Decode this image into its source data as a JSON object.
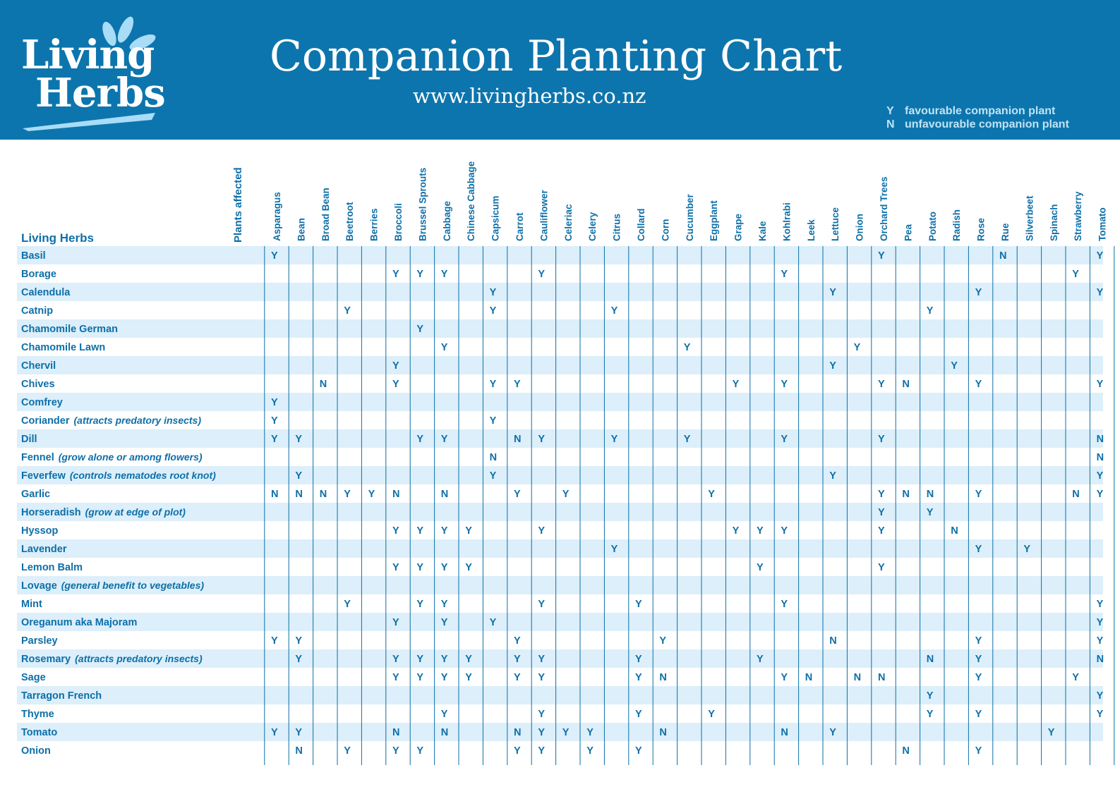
{
  "header": {
    "logo_line1": "Living",
    "logo_line2": "Herbs",
    "title": "Companion Planting Chart",
    "url": "www.livingherbs.co.nz"
  },
  "legend": {
    "y_key": "Y",
    "y_text": "favourable companion plant",
    "n_key": "N",
    "n_text": "unfavourable companion plant"
  },
  "colors": {
    "brand_blue": "#0d75ad",
    "text_blue": "#0d6fa8",
    "row_shade": "#dceffa",
    "legend_text": "#bfe3f6"
  },
  "chart_data": {
    "type": "table",
    "row_header": "Living Herbs",
    "plants_header": "Plants affected",
    "columns": [
      "Asparagus",
      "Bean",
      "Broad Bean",
      "Beetroot",
      "Berries",
      "Broccoli",
      "Brussel Sprouts",
      "Cabbage",
      "Chinese Cabbage",
      "Capsicum",
      "Carrot",
      "Cauliflower",
      "Celeriac",
      "Celery",
      "Citrus",
      "Collard",
      "Corn",
      "Cucumber",
      "Eggplant",
      "Grape",
      "Kale",
      "Kohlrabi",
      "Leek",
      "Lettuce",
      "Onion",
      "Orchard Trees",
      "Pea",
      "Potato",
      "Radish",
      "Rose",
      "Rue",
      "Silverbeet",
      "Spinach",
      "Strawberry",
      "Tomato"
    ],
    "rows": [
      {
        "name": "Basil",
        "note": "",
        "cells": {
          "Asparagus": "Y",
          "Orchard Trees": "Y",
          "Rue": "N",
          "Tomato": "Y"
        }
      },
      {
        "name": "Borage",
        "note": "",
        "cells": {
          "Broccoli": "Y",
          "Brussel Sprouts": "Y",
          "Cabbage": "Y",
          "Cauliflower": "Y",
          "Kohlrabi": "Y",
          "Strawberry": "Y"
        }
      },
      {
        "name": "Calendula",
        "note": "",
        "cells": {
          "Capsicum": "Y",
          "Lettuce": "Y",
          "Rose": "Y",
          "Tomato": "Y"
        }
      },
      {
        "name": "Catnip",
        "note": "",
        "cells": {
          "Beetroot": "Y",
          "Capsicum": "Y",
          "Citrus": "Y",
          "Potato": "Y"
        }
      },
      {
        "name": "Chamomile German",
        "note": "",
        "cells": {
          "Brussel Sprouts": "Y"
        }
      },
      {
        "name": "Chamomile Lawn",
        "note": "",
        "cells": {
          "Cabbage": "Y",
          "Cucumber": "Y",
          "Onion": "Y"
        }
      },
      {
        "name": "Chervil",
        "note": "",
        "cells": {
          "Broccoli": "Y",
          "Lettuce": "Y",
          "Radish": "Y"
        }
      },
      {
        "name": "Chives",
        "note": "",
        "cells": {
          "Broad Bean": "N",
          "Broccoli": "Y",
          "Capsicum": "Y",
          "Carrot": "Y",
          "Grape": "Y",
          "Kohlrabi": "Y",
          "Orchard Trees": "Y",
          "Pea": "N",
          "Rose": "Y",
          "Tomato": "Y"
        }
      },
      {
        "name": "Comfrey",
        "note": "",
        "cells": {
          "Asparagus": "Y"
        }
      },
      {
        "name": "Coriander",
        "note": "(attracts predatory insects)",
        "cells": {
          "Asparagus": "Y",
          "Capsicum": "Y"
        }
      },
      {
        "name": "Dill",
        "note": "",
        "cells": {
          "Asparagus": "Y",
          "Bean": "Y",
          "Brussel Sprouts": "Y",
          "Cabbage": "Y",
          "Carrot": "N",
          "Cauliflower": "Y",
          "Citrus": "Y",
          "Cucumber": "Y",
          "Kohlrabi": "Y",
          "Orchard Trees": "Y",
          "Tomato": "N"
        }
      },
      {
        "name": "Fennel",
        "note": "(grow alone or among flowers)",
        "cells": {
          "Capsicum": "N",
          "Tomato": "N"
        }
      },
      {
        "name": "Feverfew",
        "note": "(controls nematodes root knot)",
        "cells": {
          "Bean": "Y",
          "Capsicum": "Y",
          "Lettuce": "Y",
          "Tomato": "Y"
        }
      },
      {
        "name": "Garlic",
        "note": "",
        "cells": {
          "Asparagus": "N",
          "Bean": "N",
          "Broad Bean": "N",
          "Beetroot": "Y",
          "Berries": "Y",
          "Broccoli": "N",
          "Cabbage": "N",
          "Carrot": "Y",
          "Celeriac": "Y",
          "Eggplant": "Y",
          "Orchard Trees": "Y",
          "Pea": "N",
          "Potato": "N",
          "Rose": "Y",
          "Strawberry": "N",
          "Tomato": "Y"
        }
      },
      {
        "name": "Horseradish",
        "note": "(grow at edge of plot)",
        "cells": {
          "Orchard Trees": "Y",
          "Potato": "Y"
        }
      },
      {
        "name": "Hyssop",
        "note": "",
        "cells": {
          "Broccoli": "Y",
          "Brussel Sprouts": "Y",
          "Cabbage": "Y",
          "Chinese Cabbage": "Y",
          "Cauliflower": "Y",
          "Grape": "Y",
          "Kale": "Y",
          "Kohlrabi": "Y",
          "Orchard Trees": "Y",
          "Radish": "N"
        }
      },
      {
        "name": "Lavender",
        "note": "",
        "cells": {
          "Citrus": "Y",
          "Rose": "Y",
          "Silverbeet": "Y"
        }
      },
      {
        "name": "Lemon Balm",
        "note": "",
        "cells": {
          "Broccoli": "Y",
          "Brussel Sprouts": "Y",
          "Cabbage": "Y",
          "Chinese Cabbage": "Y",
          "Kale": "Y",
          "Orchard Trees": "Y"
        }
      },
      {
        "name": "Lovage",
        "note": "(general benefit to vegetables)",
        "cells": {}
      },
      {
        "name": "Mint",
        "note": "",
        "cells": {
          "Beetroot": "Y",
          "Brussel Sprouts": "Y",
          "Cabbage": "Y",
          "Cauliflower": "Y",
          "Collard": "Y",
          "Kohlrabi": "Y",
          "Tomato": "Y"
        }
      },
      {
        "name": "Oreganum aka Majoram",
        "note": "",
        "cells": {
          "Broccoli": "Y",
          "Cabbage": "Y",
          "Capsicum": "Y",
          "Tomato": "Y"
        }
      },
      {
        "name": "Parsley",
        "note": "",
        "cells": {
          "Asparagus": "Y",
          "Bean": "Y",
          "Carrot": "Y",
          "Corn": "Y",
          "Lettuce": "N",
          "Rose": "Y",
          "Tomato": "Y"
        }
      },
      {
        "name": "Rosemary",
        "note": "(attracts predatory insects)",
        "cells": {
          "Bean": "Y",
          "Broccoli": "Y",
          "Brussel Sprouts": "Y",
          "Cabbage": "Y",
          "Chinese Cabbage": "Y",
          "Carrot": "Y",
          "Cauliflower": "Y",
          "Collard": "Y",
          "Kale": "Y",
          "Potato": "N",
          "Rose": "Y",
          "Tomato": "N"
        }
      },
      {
        "name": "Sage",
        "note": "",
        "cells": {
          "Broccoli": "Y",
          "Brussel Sprouts": "Y",
          "Cabbage": "Y",
          "Chinese Cabbage": "Y",
          "Carrot": "Y",
          "Cauliflower": "Y",
          "Collard": "Y",
          "Corn": "N",
          "Kohlrabi": "Y",
          "Leek": "N",
          "Onion": "N",
          "Orchard Trees": "N",
          "Rose": "Y",
          "Strawberry": "Y"
        }
      },
      {
        "name": "Tarragon French",
        "note": "",
        "cells": {
          "Potato": "Y",
          "Tomato": "Y"
        }
      },
      {
        "name": "Thyme",
        "note": "",
        "cells": {
          "Cabbage": "Y",
          "Cauliflower": "Y",
          "Collard": "Y",
          "Eggplant": "Y",
          "Potato": "Y",
          "Rose": "Y",
          "Tomato": "Y"
        }
      },
      {
        "name": "Tomato",
        "note": "",
        "cells": {
          "Asparagus": "Y",
          "Bean": "Y",
          "Broccoli": "N",
          "Cabbage": "N",
          "Carrot": "N",
          "Cauliflower": "Y",
          "Celeriac": "Y",
          "Celery": "Y",
          "Corn": "N",
          "Kohlrabi": "N",
          "Lettuce": "Y",
          "Spinach": "Y"
        }
      },
      {
        "name": "Onion",
        "note": "",
        "cells": {
          "Bean": "N",
          "Beetroot": "Y",
          "Broccoli": "Y",
          "Brussel Sprouts": "Y",
          "Carrot": "Y",
          "Cauliflower": "Y",
          "Celery": "Y",
          "Collard": "Y",
          "Pea": "N",
          "Rose": "Y"
        }
      }
    ]
  }
}
